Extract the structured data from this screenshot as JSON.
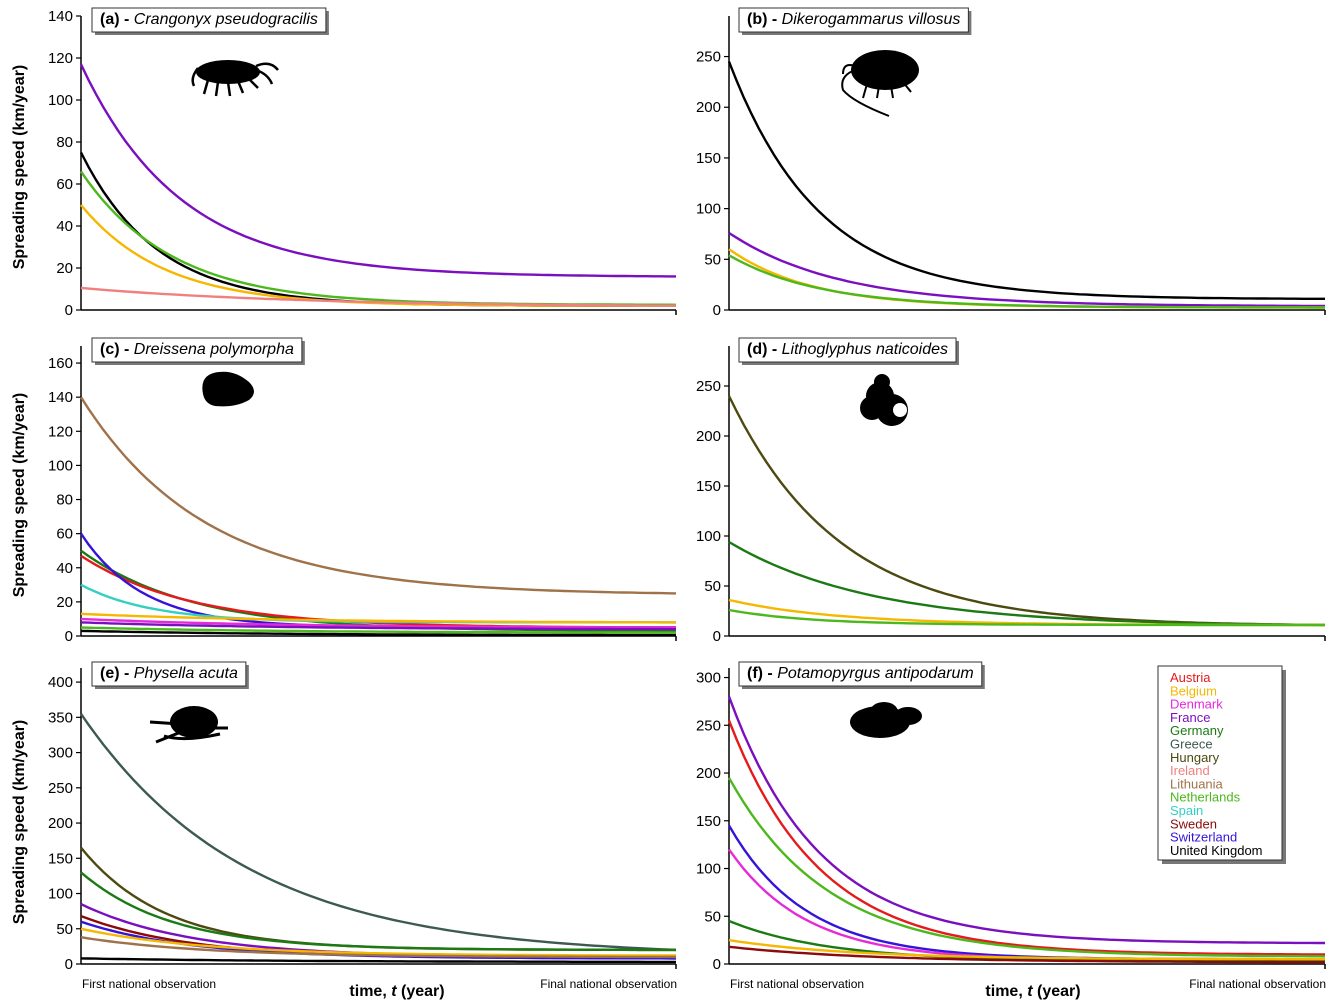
{
  "figure": {
    "ylabel": "Spreading speed (km/year)",
    "xlabel_prefix": "time, ",
    "xlabel_var": "t",
    "xlabel_suffix": " (year)",
    "x_start_label": "First national observation",
    "x_end_label": "Final national observation"
  },
  "legend": [
    {
      "name": "Austria",
      "color": "#e41a1c"
    },
    {
      "name": "Belgium",
      "color": "#f5b700"
    },
    {
      "name": "Denmark",
      "color": "#e52ad8"
    },
    {
      "name": "France",
      "color": "#7a0fc0"
    },
    {
      "name": "Germany",
      "color": "#1b7a14"
    },
    {
      "name": "Greece",
      "color": "#3c5a50"
    },
    {
      "name": "Hungary",
      "color": "#4c4a10"
    },
    {
      "name": "Ireland",
      "color": "#f08080"
    },
    {
      "name": "Lithuania",
      "color": "#a0724a"
    },
    {
      "name": "Netherlands",
      "color": "#4cb81c"
    },
    {
      "name": "Spain",
      "color": "#33d0c0"
    },
    {
      "name": "Sweden",
      "color": "#8b0a0a"
    },
    {
      "name": "Switzerland",
      "color": "#3414d8"
    },
    {
      "name": "United Kingdom",
      "color": "#000000"
    }
  ],
  "chart_data": [
    {
      "type": "line",
      "panel_label": "(a) - ",
      "species": "Crangonyx pseudogracilis",
      "xlabel": "time, t (year)",
      "ylabel": "Spreading speed (km/year)",
      "ylim": [
        0,
        140
      ],
      "yticks": [
        0,
        20,
        40,
        60,
        80,
        100,
        120,
        140
      ],
      "series": [
        {
          "name": "France",
          "start": 117,
          "end": 16,
          "shape": 1.0
        },
        {
          "name": "United Kingdom",
          "start": 75,
          "end": 2,
          "shape": 1.3
        },
        {
          "name": "Netherlands",
          "start": 66,
          "end": 2.5,
          "shape": 1.1
        },
        {
          "name": "Belgium",
          "start": 50,
          "end": 2,
          "shape": 1.2
        },
        {
          "name": "Ireland",
          "start": 10.5,
          "end": 2,
          "shape": 0.45
        }
      ]
    },
    {
      "type": "line",
      "panel_label": "(b) - ",
      "species": "Dikerogammarus villosus",
      "xlabel": "time, t (year)",
      "ylabel": "Spreading speed (km/year)",
      "ylim": [
        0,
        290
      ],
      "yticks": [
        0,
        50,
        100,
        150,
        200,
        250
      ],
      "series": [
        {
          "name": "United Kingdom",
          "start": 245,
          "end": 11,
          "shape": 1.1
        },
        {
          "name": "France",
          "start": 76,
          "end": 4,
          "shape": 0.9
        },
        {
          "name": "Belgium",
          "start": 60,
          "end": 2.5,
          "shape": 1.2
        },
        {
          "name": "Netherlands",
          "start": 54,
          "end": 2.5,
          "shape": 1.1
        }
      ]
    },
    {
      "type": "line",
      "panel_label": "(c) - ",
      "species": "Dreissena polymorpha",
      "xlabel": "time, t (year)",
      "ylabel": "Spreading speed (km/year)",
      "ylim": [
        0,
        170
      ],
      "yticks": [
        0,
        20,
        40,
        60,
        80,
        100,
        120,
        140,
        160
      ],
      "series": [
        {
          "name": "Lithuania",
          "start": 140,
          "end": 25,
          "shape": 0.8
        },
        {
          "name": "Germany",
          "start": 50,
          "end": 3,
          "shape": 0.9
        },
        {
          "name": "Austria",
          "start": 47,
          "end": 5,
          "shape": 0.9
        },
        {
          "name": "Switzerland",
          "start": 60,
          "end": 5,
          "shape": 1.6
        },
        {
          "name": "Spain",
          "start": 30,
          "end": 8,
          "shape": 1.4
        },
        {
          "name": "Belgium",
          "start": 13,
          "end": 8,
          "shape": 0.5
        },
        {
          "name": "Denmark",
          "start": 10,
          "end": 5,
          "shape": 0.5
        },
        {
          "name": "France",
          "start": 8,
          "end": 4,
          "shape": 0.5
        },
        {
          "name": "Netherlands",
          "start": 5,
          "end": 2,
          "shape": 0.5
        },
        {
          "name": "United Kingdom",
          "start": 3,
          "end": 0.5,
          "shape": 0.5
        }
      ]
    },
    {
      "type": "line",
      "panel_label": "(d) - ",
      "species": "Lithoglyphus naticoides",
      "xlabel": "time, t (year)",
      "ylabel": "Spreading speed (km/year)",
      "ylim": [
        0,
        290
      ],
      "yticks": [
        0,
        50,
        100,
        150,
        200,
        250
      ],
      "series": [
        {
          "name": "Hungary",
          "start": 240,
          "end": 11,
          "shape": 0.9
        },
        {
          "name": "Germany",
          "start": 94,
          "end": 11,
          "shape": 0.7
        },
        {
          "name": "Belgium",
          "start": 36,
          "end": 11,
          "shape": 0.9
        },
        {
          "name": "Netherlands",
          "start": 26,
          "end": 11,
          "shape": 1.2
        }
      ]
    },
    {
      "type": "line",
      "panel_label": "(e) - ",
      "species": "Physella acuta",
      "xlabel": "time, t (year)",
      "ylabel": "Spreading speed (km/year)",
      "ylim": [
        0,
        420
      ],
      "yticks": [
        0,
        50,
        100,
        150,
        200,
        250,
        300,
        350,
        400
      ],
      "series": [
        {
          "name": "Greece",
          "start": 355,
          "end": 20,
          "shape": 0.6
        },
        {
          "name": "Hungary",
          "start": 165,
          "end": 20,
          "shape": 1.2
        },
        {
          "name": "Germany",
          "start": 130,
          "end": 20,
          "shape": 1.1
        },
        {
          "name": "France",
          "start": 85,
          "end": 10,
          "shape": 0.9
        },
        {
          "name": "Sweden",
          "start": 68,
          "end": 8,
          "shape": 0.9
        },
        {
          "name": "Switzerland",
          "start": 60,
          "end": 8,
          "shape": 0.9
        },
        {
          "name": "Belgium",
          "start": 50,
          "end": 12,
          "shape": 0.8
        },
        {
          "name": "Lithuania",
          "start": 38,
          "end": 10,
          "shape": 0.8
        },
        {
          "name": "United Kingdom",
          "start": 8,
          "end": 3,
          "shape": 0.5
        }
      ]
    },
    {
      "type": "line",
      "panel_label": "(f) - ",
      "species": "Potamopyrgus antipodarum",
      "xlabel": "time, t (year)",
      "ylabel": "Spreading speed (km/year)",
      "ylim": [
        0,
        310
      ],
      "yticks": [
        0,
        50,
        100,
        150,
        200,
        250,
        300
      ],
      "legend_position": "top-right",
      "series": [
        {
          "name": "France",
          "start": 280,
          "end": 22,
          "shape": 1.1
        },
        {
          "name": "Austria",
          "start": 255,
          "end": 10,
          "shape": 1.1
        },
        {
          "name": "Netherlands",
          "start": 195,
          "end": 8,
          "shape": 1.0
        },
        {
          "name": "Switzerland",
          "start": 145,
          "end": 5,
          "shape": 1.3
        },
        {
          "name": "Denmark",
          "start": 120,
          "end": 4,
          "shape": 1.3
        },
        {
          "name": "Germany",
          "start": 45,
          "end": 3,
          "shape": 1.0
        },
        {
          "name": "Belgium",
          "start": 25,
          "end": 5,
          "shape": 0.8
        },
        {
          "name": "Sweden",
          "start": 18,
          "end": 2,
          "shape": 0.7
        }
      ]
    }
  ]
}
